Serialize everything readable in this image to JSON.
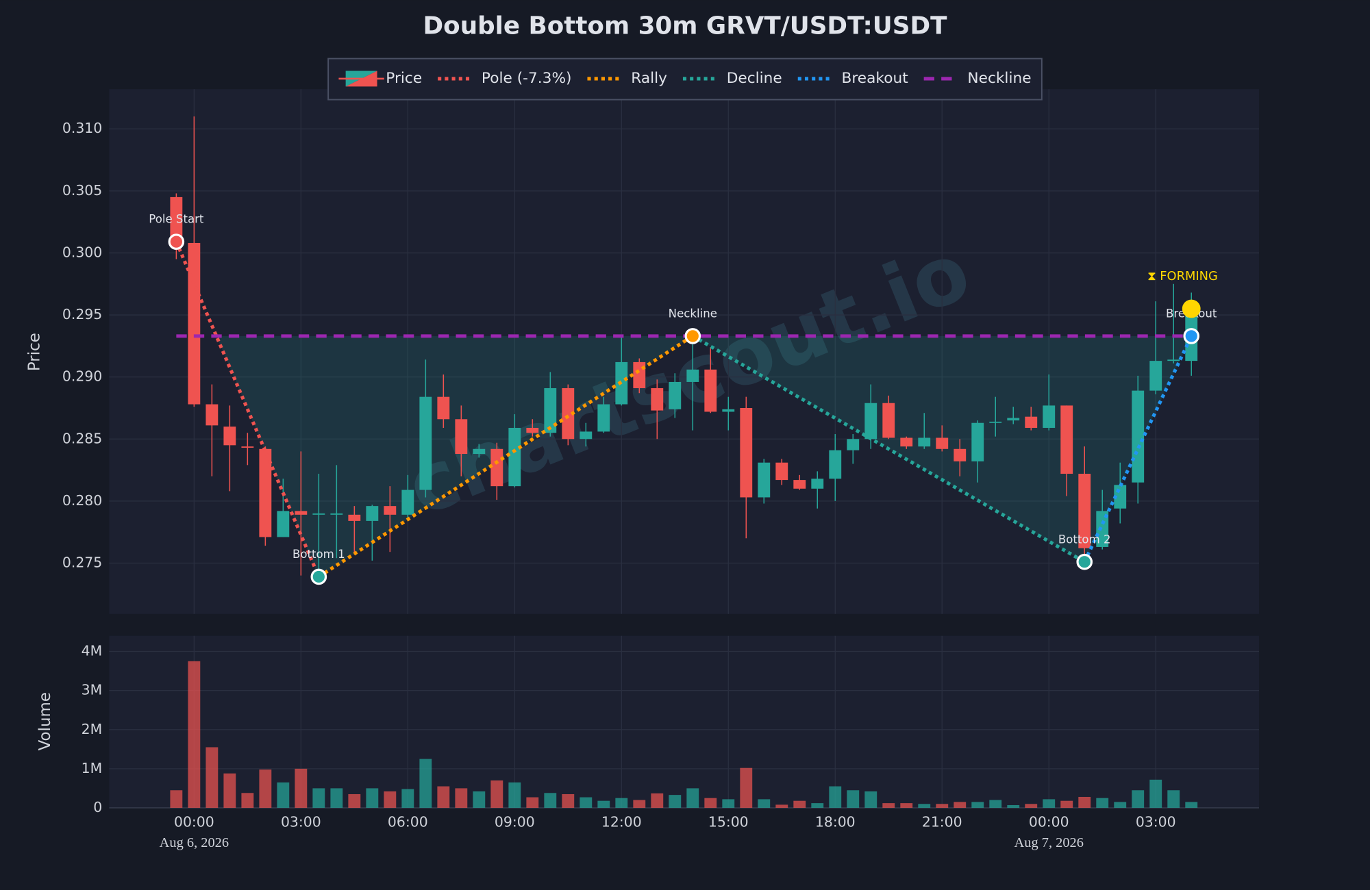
{
  "chart_data": {
    "type": "candlestick",
    "title": "Double Bottom 30m GRVT/USDT:USDT",
    "watermark": "chartscout.io",
    "candle_name": "Price",
    "ylabel": "Price",
    "volume_ylabel": "Volume",
    "up_color": "#26a69a",
    "down_color": "#ef5350",
    "grid": true,
    "x": [
      "2026-08-05 23:30",
      "2026-08-06 00:00",
      "2026-08-06 00:30",
      "2026-08-06 01:00",
      "2026-08-06 01:30",
      "2026-08-06 02:00",
      "2026-08-06 02:30",
      "2026-08-06 03:00",
      "2026-08-06 03:30",
      "2026-08-06 04:00",
      "2026-08-06 04:30",
      "2026-08-06 05:00",
      "2026-08-06 05:30",
      "2026-08-06 06:00",
      "2026-08-06 06:30",
      "2026-08-06 07:00",
      "2026-08-06 07:30",
      "2026-08-06 08:00",
      "2026-08-06 08:30",
      "2026-08-06 09:00",
      "2026-08-06 09:30",
      "2026-08-06 10:00",
      "2026-08-06 10:30",
      "2026-08-06 11:00",
      "2026-08-06 11:30",
      "2026-08-06 12:00",
      "2026-08-06 12:30",
      "2026-08-06 13:00",
      "2026-08-06 13:30",
      "2026-08-06 14:00",
      "2026-08-06 14:30",
      "2026-08-06 15:00",
      "2026-08-06 15:30",
      "2026-08-06 16:00",
      "2026-08-06 16:30",
      "2026-08-06 17:00",
      "2026-08-06 17:30",
      "2026-08-06 18:00",
      "2026-08-06 18:30",
      "2026-08-06 19:00",
      "2026-08-06 19:30",
      "2026-08-06 20:00",
      "2026-08-06 20:30",
      "2026-08-06 21:00",
      "2026-08-06 21:30",
      "2026-08-06 22:00",
      "2026-08-06 22:30",
      "2026-08-06 23:00",
      "2026-08-06 23:30",
      "2026-08-07 00:00",
      "2026-08-07 00:30",
      "2026-08-07 01:00",
      "2026-08-07 01:30",
      "2026-08-07 02:00",
      "2026-08-07 02:30",
      "2026-08-07 03:00",
      "2026-08-07 03:30",
      "2026-08-07 04:00"
    ],
    "open": [
      0.3045,
      0.3008,
      0.2878,
      0.286,
      0.2844,
      0.2842,
      0.2771,
      0.2792,
      0.2789,
      0.2789,
      0.2789,
      0.2784,
      0.2796,
      0.2789,
      0.2809,
      0.2884,
      0.2866,
      0.2838,
      0.2842,
      0.2812,
      0.2859,
      0.2855,
      0.2891,
      0.285,
      0.2856,
      0.2878,
      0.2912,
      0.2891,
      0.2874,
      0.2896,
      0.2906,
      0.2872,
      0.2875,
      0.2803,
      0.2831,
      0.2817,
      0.281,
      0.2818,
      0.2841,
      0.285,
      0.2879,
      0.2851,
      0.2844,
      0.2851,
      0.2842,
      0.2832,
      0.2863,
      0.2865,
      0.2868,
      0.2859,
      0.2877,
      0.2822,
      0.2763,
      0.2794,
      0.2815,
      0.2889,
      0.2913,
      0.2913
    ],
    "high": [
      0.3048,
      0.311,
      0.2894,
      0.2877,
      0.2855,
      0.2844,
      0.2818,
      0.284,
      0.2822,
      0.2829,
      0.2796,
      0.2797,
      0.2812,
      0.2821,
      0.2914,
      0.2902,
      0.2877,
      0.2846,
      0.2847,
      0.287,
      0.2866,
      0.2904,
      0.2894,
      0.2863,
      0.2884,
      0.2933,
      0.2915,
      0.2898,
      0.2903,
      0.2933,
      0.2924,
      0.2884,
      0.2884,
      0.2834,
      0.2834,
      0.2821,
      0.2824,
      0.2854,
      0.2854,
      0.2894,
      0.2885,
      0.2852,
      0.2871,
      0.2861,
      0.285,
      0.2865,
      0.2884,
      0.2876,
      0.2876,
      0.2902,
      0.2877,
      0.2844,
      0.2809,
      0.2831,
      0.2901,
      0.2961,
      0.2975,
      0.2968
    ],
    "low": [
      0.2995,
      0.2876,
      0.282,
      0.2808,
      0.2829,
      0.2764,
      0.2771,
      0.274,
      0.2739,
      0.2754,
      0.2757,
      0.2752,
      0.2759,
      0.2784,
      0.2803,
      0.2859,
      0.282,
      0.2835,
      0.2801,
      0.2811,
      0.2852,
      0.2852,
      0.2845,
      0.2844,
      0.2855,
      0.2877,
      0.2887,
      0.285,
      0.2867,
      0.2857,
      0.2871,
      0.2857,
      0.277,
      0.2798,
      0.2813,
      0.2809,
      0.2794,
      0.28,
      0.283,
      0.2842,
      0.285,
      0.2842,
      0.2842,
      0.284,
      0.282,
      0.2815,
      0.2852,
      0.2862,
      0.2857,
      0.2857,
      0.2804,
      0.2751,
      0.2761,
      0.2782,
      0.2798,
      0.2886,
      0.2911,
      0.2901
    ],
    "close": [
      0.301,
      0.2878,
      0.2861,
      0.2845,
      0.2843,
      0.2771,
      0.2792,
      0.2789,
      0.279,
      0.279,
      0.2784,
      0.2796,
      0.2789,
      0.2809,
      0.2884,
      0.2866,
      0.2838,
      0.2842,
      0.2812,
      0.2859,
      0.2855,
      0.2891,
      0.285,
      0.2856,
      0.2878,
      0.2912,
      0.2891,
      0.2873,
      0.2896,
      0.2906,
      0.2872,
      0.2874,
      0.2803,
      0.2831,
      0.2817,
      0.281,
      0.2818,
      0.2841,
      0.285,
      0.2879,
      0.2851,
      0.2844,
      0.2851,
      0.2842,
      0.2832,
      0.2863,
      0.2864,
      0.2867,
      0.2859,
      0.2877,
      0.2822,
      0.2762,
      0.2792,
      0.2813,
      0.2889,
      0.2913,
      0.2914,
      0.2954
    ],
    "volume": [
      450000,
      3750000,
      1550000,
      880000,
      380000,
      980000,
      650000,
      1000000,
      500000,
      500000,
      350000,
      500000,
      420000,
      480000,
      1250000,
      550000,
      500000,
      420000,
      700000,
      650000,
      270000,
      380000,
      350000,
      270000,
      180000,
      250000,
      200000,
      370000,
      330000,
      500000,
      250000,
      220000,
      1020000,
      220000,
      80000,
      180000,
      120000,
      550000,
      450000,
      420000,
      120000,
      120000,
      100000,
      100000,
      150000,
      150000,
      200000,
      70000,
      100000,
      220000,
      180000,
      280000,
      250000,
      150000,
      450000,
      720000,
      450000,
      150000
    ],
    "xlim": [
      "2026-08-05 21:37",
      "2026-08-07 05:54"
    ],
    "xticks": [
      {
        "value": "2026-08-06 00:00",
        "label": "00:00"
      },
      {
        "value": "2026-08-06 03:00",
        "label": "03:00"
      },
      {
        "value": "2026-08-06 06:00",
        "label": "06:00"
      },
      {
        "value": "2026-08-06 09:00",
        "label": "09:00"
      },
      {
        "value": "2026-08-06 12:00",
        "label": "12:00"
      },
      {
        "value": "2026-08-06 15:00",
        "label": "15:00"
      },
      {
        "value": "2026-08-06 18:00",
        "label": "18:00"
      },
      {
        "value": "2026-08-06 21:00",
        "label": "21:00"
      },
      {
        "value": "2026-08-07 00:00",
        "label": "00:00"
      },
      {
        "value": "2026-08-07 03:00",
        "label": "03:00"
      }
    ],
    "xdate_labels": [
      {
        "value": "2026-08-06 00:00",
        "label": "Aug 6, 2026"
      },
      {
        "value": "2026-08-07 00:00",
        "label": "Aug 7, 2026"
      }
    ],
    "ylim": [
      0.2709,
      0.3132
    ],
    "yticks": [
      0.275,
      {
        "value": 0.28,
        "label": "0.280"
      },
      0.285,
      {
        "value": 0.29,
        "label": "0.290"
      },
      0.295,
      {
        "value": 0.3,
        "label": "0.300"
      },
      0.305,
      {
        "value": 0.31,
        "label": "0.310"
      }
    ],
    "volume_ylim": [
      0,
      4400000
    ],
    "volume_yticks": [
      0,
      {
        "value": 1000000,
        "label": "1M"
      },
      {
        "value": 2000000,
        "label": "2M"
      },
      {
        "value": 3000000,
        "label": "3M"
      },
      {
        "value": 4000000,
        "label": "4M"
      }
    ],
    "overlays": [
      {
        "name": "Pole (-7.3%)",
        "color": "#ef5350",
        "style": "dotted",
        "x": [
          "2026-08-05 23:30",
          "2026-08-06 03:30"
        ],
        "values": [
          0.3009,
          0.2739
        ]
      },
      {
        "name": "Rally",
        "color": "#ff9800",
        "style": "dotted",
        "x": [
          "2026-08-06 03:30",
          "2026-08-06 14:00"
        ],
        "values": [
          0.2739,
          0.2933
        ]
      },
      {
        "name": "Decline",
        "color": "#26a69a",
        "style": "dotted",
        "x": [
          "2026-08-06 14:00",
          "2026-08-07 01:00"
        ],
        "values": [
          0.2933,
          0.2751
        ]
      },
      {
        "name": "Breakout",
        "color": "#2196f3",
        "style": "dotted",
        "x": [
          "2026-08-07 01:00",
          "2026-08-07 04:00"
        ],
        "values": [
          0.2751,
          0.2933
        ]
      },
      {
        "name": "Neckline",
        "color": "#9c27b0",
        "style": "dashed",
        "x": [
          "2026-08-05 23:30",
          "2026-08-07 04:00"
        ],
        "values": [
          0.2933,
          0.2933
        ]
      }
    ],
    "markers": [
      {
        "label": "Pole Start",
        "x": "2026-08-05 23:30",
        "value": 0.3009,
        "color": "#ef5350"
      },
      {
        "label": "Bottom 1",
        "x": "2026-08-06 03:30",
        "value": 0.2739,
        "color": "#26a69a"
      },
      {
        "label": "Neckline",
        "x": "2026-08-06 14:00",
        "value": 0.2933,
        "color": "#ff9800"
      },
      {
        "label": "Bottom 2",
        "x": "2026-08-07 01:00",
        "value": 0.2751,
        "color": "#26a69a"
      },
      {
        "label": "Breakout",
        "x": "2026-08-07 04:00",
        "value": 0.2933,
        "color": "#2196f3"
      },
      {
        "label": "⧗ FORMING",
        "x": "2026-08-07 04:00",
        "value": 0.2955,
        "color": "#ffd600"
      }
    ]
  }
}
